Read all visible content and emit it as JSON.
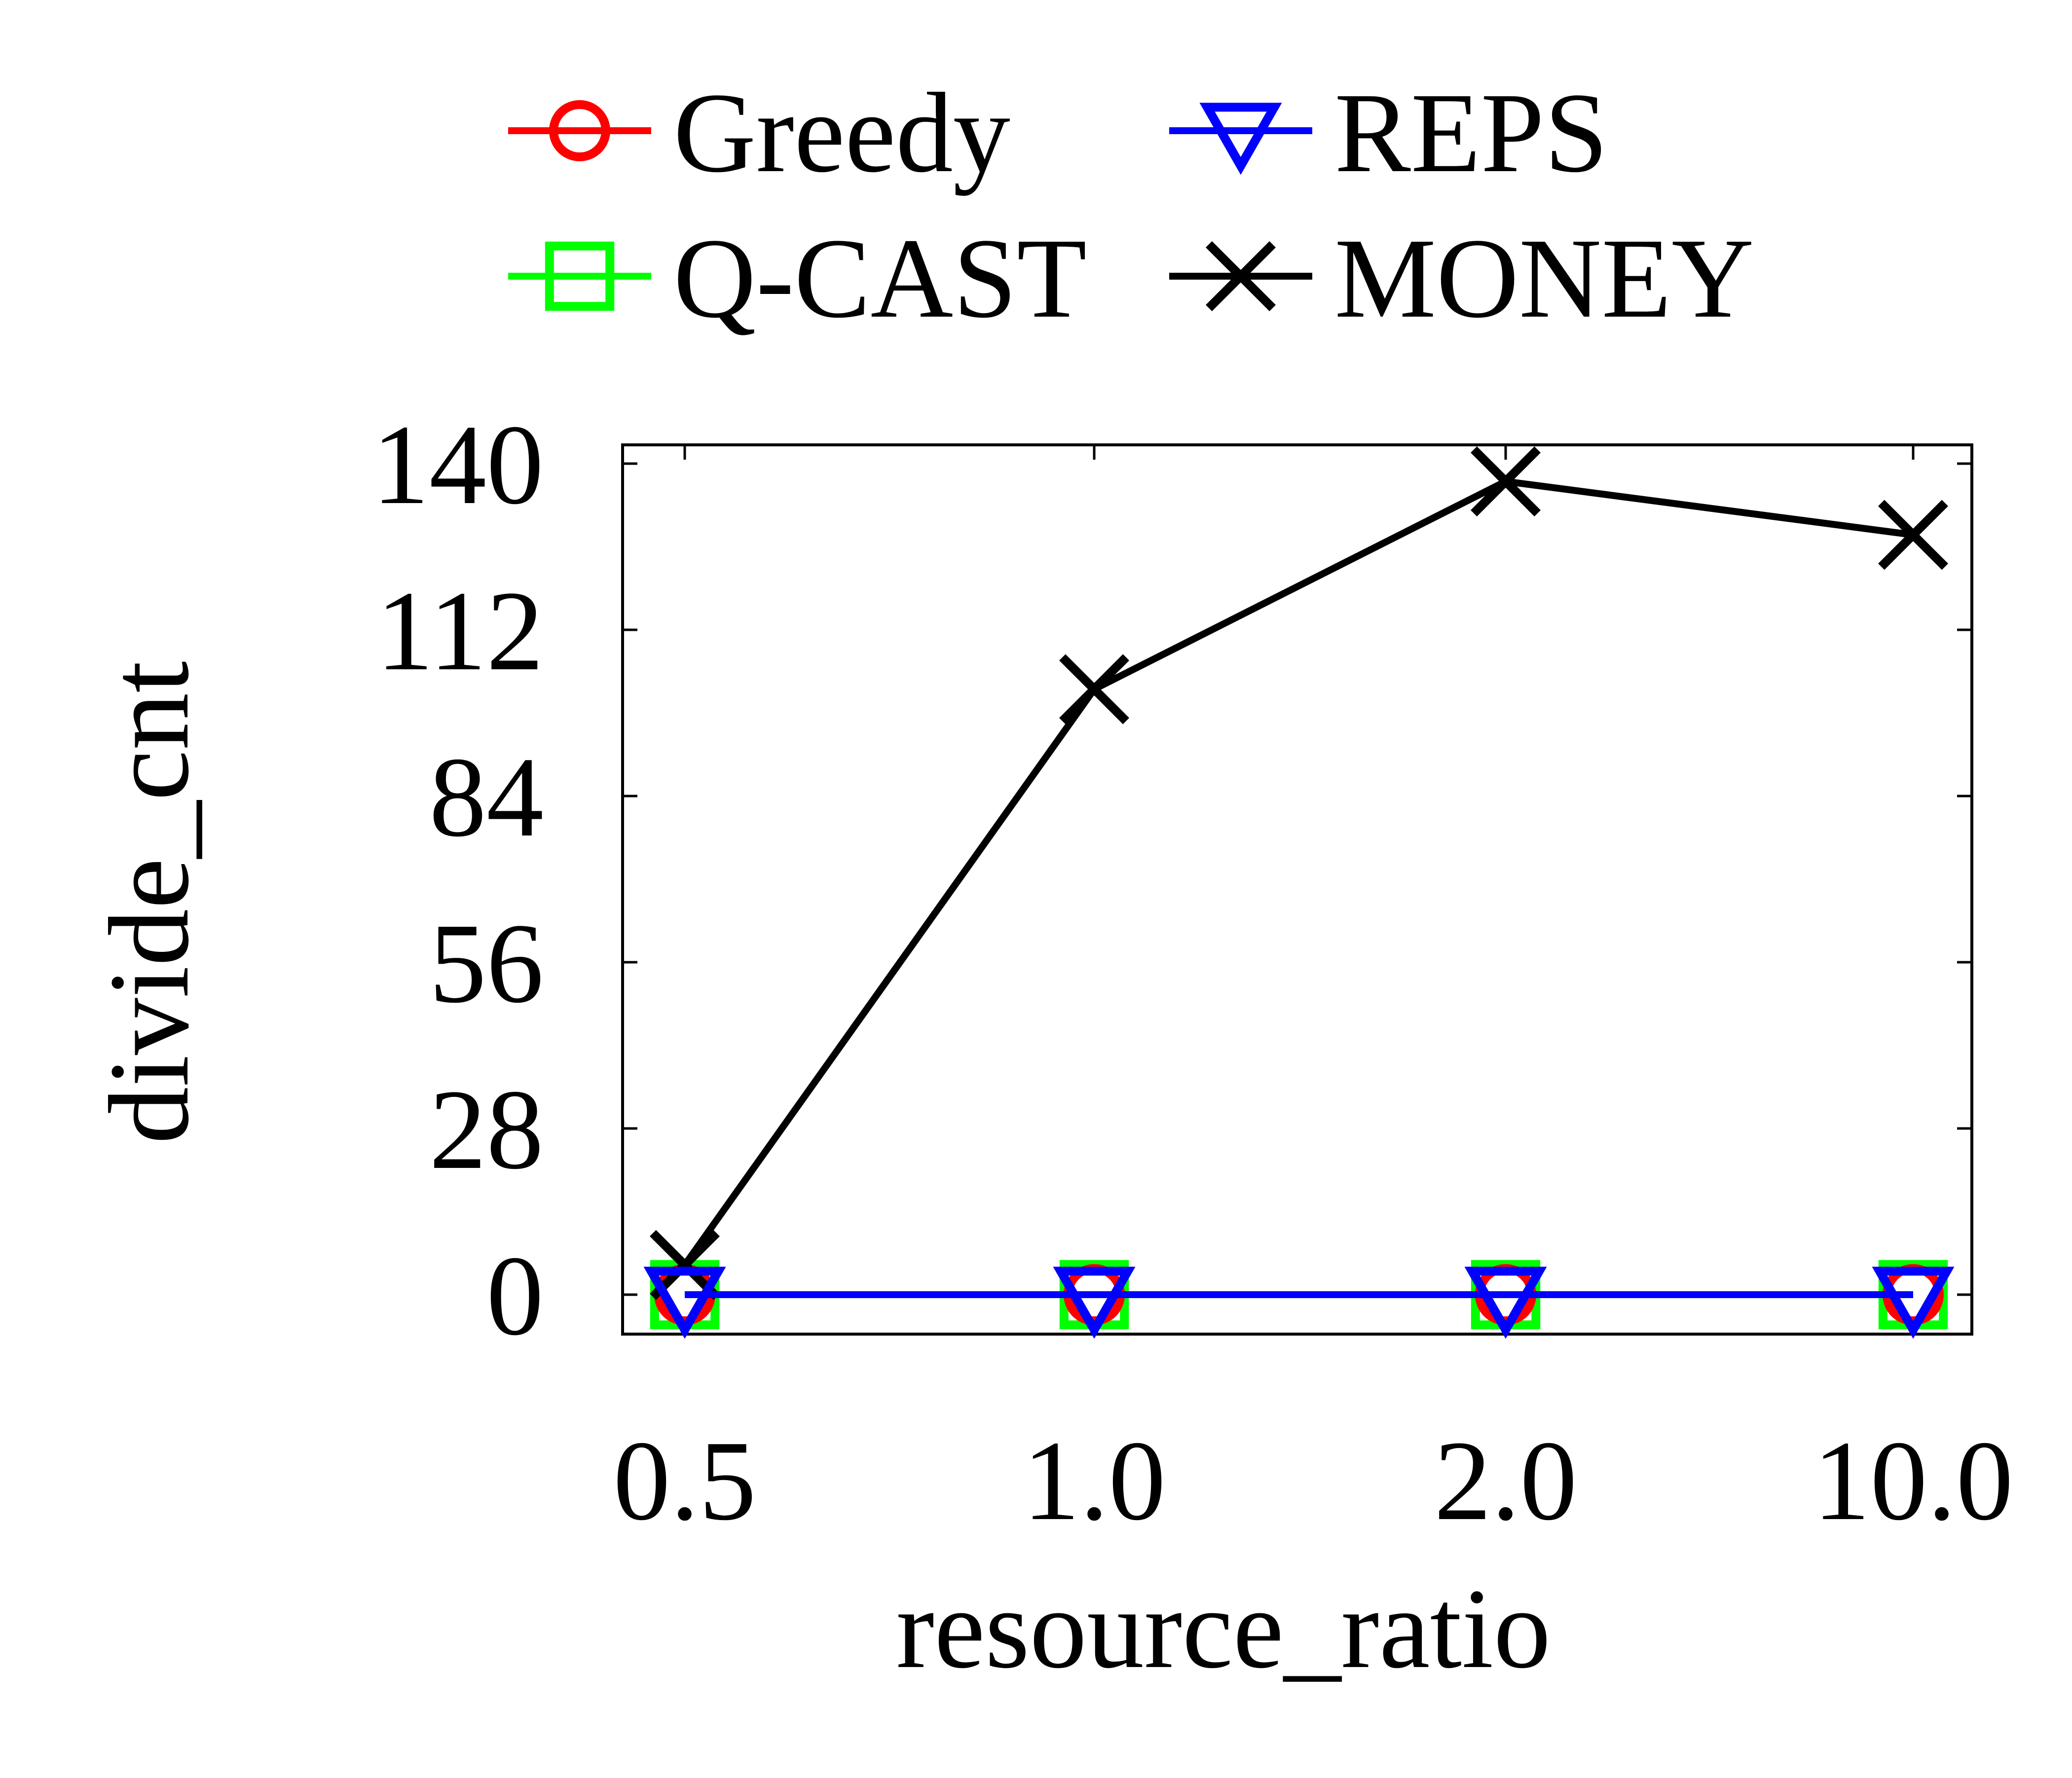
{
  "chart_data": {
    "type": "line",
    "title": "",
    "xlabel": "resource_ratio",
    "ylabel": "divide_cnt",
    "categories": [
      "0.5",
      "1.0",
      "2.0",
      "10.0"
    ],
    "ylim": [
      0,
      140
    ],
    "yticks": [
      0,
      28,
      56,
      84,
      112,
      140
    ],
    "grid": false,
    "legend_position": "top",
    "series": [
      {
        "name": "Greedy",
        "values": [
          0,
          0,
          0,
          0
        ],
        "color": "#ff0000",
        "marker": "circle"
      },
      {
        "name": "REPS",
        "values": [
          0,
          0,
          0,
          0
        ],
        "color": "#0000ff",
        "marker": "triangle-down"
      },
      {
        "name": "Q-CAST",
        "values": [
          0,
          0,
          0,
          0
        ],
        "color": "#00ff00",
        "marker": "square"
      },
      {
        "name": "MONEY",
        "values": [
          5,
          102,
          137,
          128
        ],
        "color": "#000000",
        "marker": "x"
      }
    ]
  }
}
